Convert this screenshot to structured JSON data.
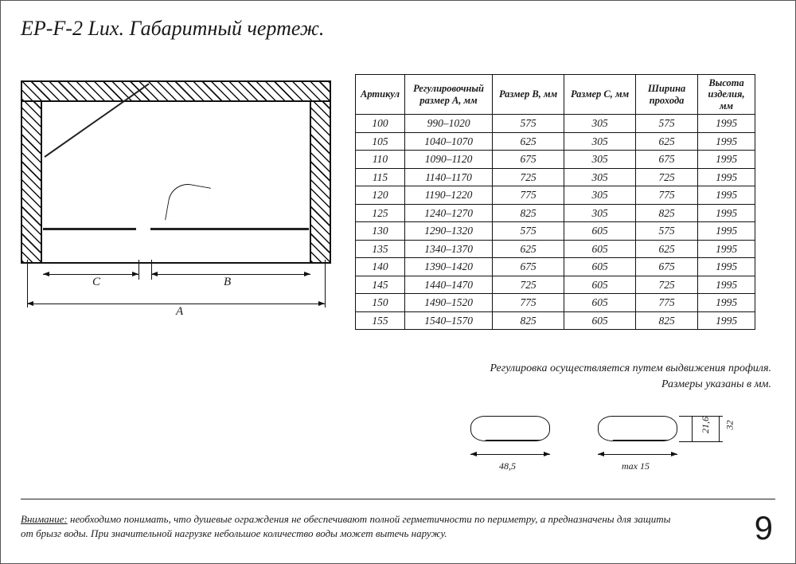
{
  "title": "EP-F-2 Lux. Габаритный чертеж.",
  "drawing": {
    "dim_A": "A",
    "dim_B": "B",
    "dim_C": "C"
  },
  "table": {
    "headers": [
      "Артикул",
      "Регулировочный размер А, мм",
      "Размер В, мм",
      "Размер С, мм",
      "Ширина прохода",
      "Высота изделия, мм"
    ],
    "rows": [
      [
        "100",
        "990–1020",
        "575",
        "305",
        "575",
        "1995"
      ],
      [
        "105",
        "1040–1070",
        "625",
        "305",
        "625",
        "1995"
      ],
      [
        "110",
        "1090–1120",
        "675",
        "305",
        "675",
        "1995"
      ],
      [
        "115",
        "1140–1170",
        "725",
        "305",
        "725",
        "1995"
      ],
      [
        "120",
        "1190–1220",
        "775",
        "305",
        "775",
        "1995"
      ],
      [
        "125",
        "1240–1270",
        "825",
        "305",
        "825",
        "1995"
      ],
      [
        "130",
        "1290–1320",
        "575",
        "605",
        "575",
        "1995"
      ],
      [
        "135",
        "1340–1370",
        "625",
        "605",
        "625",
        "1995"
      ],
      [
        "140",
        "1390–1420",
        "675",
        "605",
        "675",
        "1995"
      ],
      [
        "145",
        "1440–1470",
        "725",
        "605",
        "725",
        "1995"
      ],
      [
        "150",
        "1490–1520",
        "775",
        "605",
        "775",
        "1995"
      ],
      [
        "155",
        "1540–1570",
        "825",
        "605",
        "825",
        "1995"
      ]
    ]
  },
  "note_right_1": "Регулировка осуществляется путем выдвижения профиля.",
  "note_right_2": "Размеры указаны в мм.",
  "profile": {
    "w1": "48,5",
    "w2": "max 15",
    "h1": "21,6",
    "h2": "32"
  },
  "warning_label": "Внимание:",
  "warning_text": " необходимо понимать, что душевые ограждения не обеспечивают полной герметичности по периметру, а предназначены для защиты от брызг воды. При значительной нагрузке небольшое количество воды может вытечь наружу.",
  "page_number": "9",
  "colors": {
    "fg": "#111111",
    "bg": "#ffffff"
  }
}
